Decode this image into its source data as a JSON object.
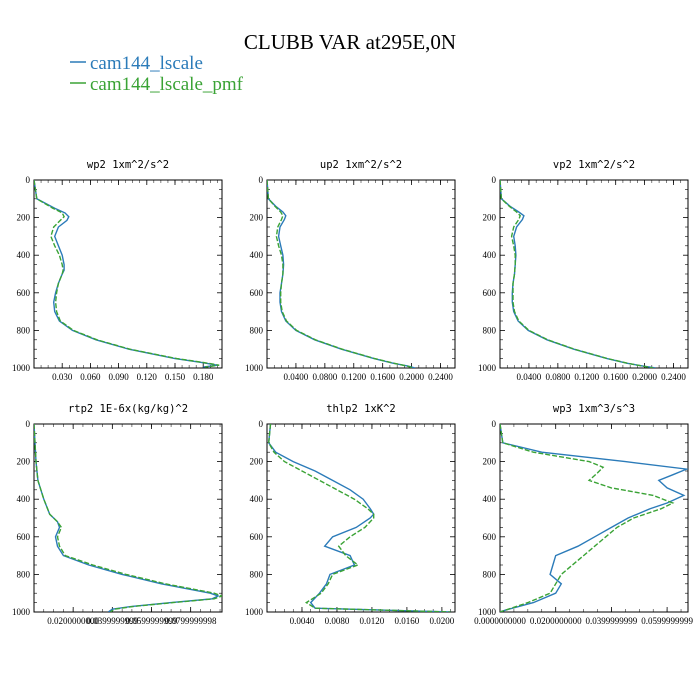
{
  "title": "CLUBB VAR at295E,0N",
  "legend": [
    {
      "label": "cam144_lscale",
      "color": "#2b7bb9",
      "dash": "solid"
    },
    {
      "label": "cam144_lscale_pmf",
      "color": "#3aa335",
      "dash": "dashed"
    }
  ],
  "chart_data": [
    {
      "type": "line",
      "title": "wp2  1xm^2/s^2",
      "xlim": [
        0.0,
        0.2
      ],
      "ylim": [
        1000,
        0
      ],
      "xticks": [
        "0.030",
        "0.060",
        "0.090",
        "0.120",
        "0.150",
        "0.180"
      ],
      "xtick_values": [
        0.03,
        0.06,
        0.09,
        0.12,
        0.15,
        0.18
      ],
      "yticks": [
        0,
        200,
        400,
        600,
        800,
        1000
      ],
      "series": [
        {
          "name": "cam144_lscale",
          "color": "#2b7bb9",
          "y": [
            0,
            100,
            150,
            175,
            195,
            215,
            250,
            300,
            350,
            400,
            450,
            480,
            500,
            550,
            600,
            650,
            700,
            750,
            800,
            850,
            900,
            950,
            970,
            985,
            995
          ],
          "x": [
            0.0,
            0.003,
            0.022,
            0.033,
            0.037,
            0.035,
            0.026,
            0.022,
            0.026,
            0.03,
            0.032,
            0.032,
            0.03,
            0.026,
            0.023,
            0.021,
            0.022,
            0.027,
            0.041,
            0.066,
            0.101,
            0.15,
            0.178,
            0.195,
            0.18
          ]
        },
        {
          "name": "cam144_lscale_pmf",
          "color": "#3aa335",
          "y": [
            0,
            100,
            150,
            175,
            195,
            215,
            250,
            300,
            350,
            400,
            450,
            480,
            500,
            550,
            600,
            650,
            700,
            750,
            800,
            850,
            900,
            950,
            970,
            985,
            995
          ],
          "x": [
            0.0,
            0.003,
            0.02,
            0.03,
            0.032,
            0.028,
            0.021,
            0.018,
            0.022,
            0.027,
            0.03,
            0.031,
            0.03,
            0.026,
            0.024,
            0.023,
            0.024,
            0.028,
            0.042,
            0.067,
            0.102,
            0.152,
            0.18,
            0.197,
            0.182
          ]
        }
      ]
    },
    {
      "type": "line",
      "title": "up2  1xm^2/s^2",
      "xlim": [
        0.0,
        0.26
      ],
      "ylim": [
        1000,
        0
      ],
      "xticks": [
        "0.0400",
        "0.0800",
        "0.1200",
        "0.1600",
        "0.2000",
        "0.2400"
      ],
      "xtick_values": [
        0.04,
        0.08,
        0.12,
        0.16,
        0.2,
        0.24
      ],
      "yticks": [
        0,
        200,
        400,
        600,
        800,
        1000
      ],
      "series": [
        {
          "name": "cam144_lscale",
          "color": "#2b7bb9",
          "y": [
            0,
            100,
            140,
            170,
            190,
            210,
            250,
            300,
            350,
            400,
            450,
            500,
            550,
            600,
            650,
            700,
            750,
            800,
            850,
            900,
            950,
            975,
            990,
            1000
          ],
          "x": [
            0.0,
            0.002,
            0.012,
            0.022,
            0.026,
            0.024,
            0.018,
            0.016,
            0.019,
            0.022,
            0.023,
            0.022,
            0.02,
            0.018,
            0.018,
            0.02,
            0.026,
            0.04,
            0.066,
            0.103,
            0.148,
            0.175,
            0.195,
            0.205
          ]
        },
        {
          "name": "cam144_lscale_pmf",
          "color": "#3aa335",
          "y": [
            0,
            100,
            140,
            170,
            190,
            210,
            250,
            300,
            350,
            400,
            450,
            500,
            550,
            600,
            650,
            700,
            750,
            800,
            850,
            900,
            950,
            975,
            990,
            1000
          ],
          "x": [
            0.0,
            0.002,
            0.011,
            0.019,
            0.022,
            0.02,
            0.015,
            0.013,
            0.016,
            0.02,
            0.022,
            0.022,
            0.02,
            0.019,
            0.019,
            0.021,
            0.027,
            0.041,
            0.067,
            0.104,
            0.149,
            0.176,
            0.194,
            0.202
          ]
        }
      ]
    },
    {
      "type": "line",
      "title": "vp2  1xm^2/s^2",
      "xlim": [
        0.0,
        0.26
      ],
      "ylim": [
        1000,
        0
      ],
      "xticks": [
        "0.0400",
        "0.0800",
        "0.1200",
        "0.1600",
        "0.2000",
        "0.2400"
      ],
      "xtick_values": [
        0.04,
        0.08,
        0.12,
        0.16,
        0.2,
        0.24
      ],
      "yticks": [
        0,
        200,
        400,
        600,
        800,
        1000
      ],
      "series": [
        {
          "name": "cam144_lscale",
          "color": "#2b7bb9",
          "y": [
            0,
            100,
            140,
            170,
            190,
            210,
            250,
            300,
            350,
            400,
            450,
            500,
            550,
            600,
            650,
            700,
            750,
            800,
            850,
            900,
            950,
            975,
            990,
            1000
          ],
          "x": [
            0.0,
            0.002,
            0.014,
            0.026,
            0.033,
            0.031,
            0.023,
            0.019,
            0.021,
            0.022,
            0.021,
            0.02,
            0.018,
            0.017,
            0.017,
            0.019,
            0.025,
            0.039,
            0.065,
            0.102,
            0.148,
            0.176,
            0.198,
            0.215
          ]
        },
        {
          "name": "cam144_lscale_pmf",
          "color": "#3aa335",
          "y": [
            0,
            100,
            140,
            170,
            190,
            210,
            250,
            300,
            350,
            400,
            450,
            500,
            550,
            600,
            650,
            700,
            750,
            800,
            850,
            900,
            950,
            975,
            990,
            1000
          ],
          "x": [
            0.0,
            0.002,
            0.013,
            0.023,
            0.028,
            0.026,
            0.019,
            0.016,
            0.019,
            0.021,
            0.021,
            0.02,
            0.018,
            0.018,
            0.018,
            0.02,
            0.026,
            0.04,
            0.066,
            0.103,
            0.149,
            0.177,
            0.197,
            0.212
          ]
        }
      ]
    },
    {
      "type": "line",
      "title": "rtp2  1E-6x(kg/kg)^2",
      "xlim": [
        0.0,
        0.096
      ],
      "ylim": [
        1000,
        0
      ],
      "xticks": [
        "0.0200000000",
        "0.0399999999",
        "0.0599999999",
        "0.0799999998"
      ],
      "xtick_values": [
        0.02,
        0.04,
        0.06,
        0.08
      ],
      "yticks": [
        0,
        200,
        400,
        600,
        800,
        1000
      ],
      "series": [
        {
          "name": "cam144_lscale",
          "color": "#2b7bb9",
          "y": [
            0,
            100,
            200,
            300,
            400,
            480,
            520,
            550,
            600,
            650,
            700,
            750,
            800,
            850,
            880,
            900,
            915,
            930,
            950,
            970,
            985,
            1000
          ],
          "x": [
            0.0,
            0.0005,
            0.001,
            0.002,
            0.005,
            0.008,
            0.012,
            0.013,
            0.011,
            0.012,
            0.015,
            0.028,
            0.045,
            0.065,
            0.08,
            0.09,
            0.094,
            0.091,
            0.07,
            0.05,
            0.04,
            0.038
          ]
        },
        {
          "name": "cam144_lscale_pmf",
          "color": "#3aa335",
          "y": [
            0,
            100,
            200,
            300,
            400,
            480,
            520,
            550,
            600,
            650,
            700,
            750,
            800,
            850,
            880,
            900,
            915,
            930,
            950,
            970,
            985,
            1000
          ],
          "x": [
            0.0,
            0.0005,
            0.001,
            0.002,
            0.005,
            0.008,
            0.012,
            0.014,
            0.012,
            0.013,
            0.016,
            0.03,
            0.047,
            0.067,
            0.082,
            0.092,
            0.096,
            0.092,
            0.071,
            0.051,
            0.041,
            0.039
          ]
        }
      ]
    },
    {
      "type": "line",
      "title": "thlp2  1xK^2",
      "xlim": [
        0.0,
        0.0215
      ],
      "ylim": [
        1000,
        0
      ],
      "xticks": [
        "0.0040",
        "0.0080",
        "0.0120",
        "0.0160",
        "0.0200"
      ],
      "xtick_values": [
        0.004,
        0.008,
        0.012,
        0.016,
        0.02
      ],
      "yticks": [
        0,
        200,
        400,
        600,
        800,
        1000
      ],
      "series": [
        {
          "name": "cam144_lscale",
          "color": "#2b7bb9",
          "y": [
            0,
            50,
            100,
            150,
            200,
            250,
            300,
            350,
            400,
            450,
            480,
            500,
            550,
            600,
            650,
            700,
            750,
            800,
            850,
            900,
            950,
            980,
            1000
          ],
          "x": [
            0.0004,
            0.0003,
            0.0002,
            0.001,
            0.003,
            0.0055,
            0.0075,
            0.0095,
            0.011,
            0.0118,
            0.0122,
            0.0118,
            0.0102,
            0.0075,
            0.0066,
            0.0095,
            0.01,
            0.0072,
            0.0068,
            0.006,
            0.005,
            0.0055,
            0.021
          ]
        },
        {
          "name": "cam144_lscale_pmf",
          "color": "#3aa335",
          "y": [
            0,
            50,
            100,
            150,
            200,
            250,
            300,
            350,
            400,
            450,
            480,
            500,
            550,
            600,
            650,
            700,
            750,
            800,
            850,
            900,
            950,
            980,
            1000
          ],
          "x": [
            0.0004,
            0.0003,
            0.0002,
            0.0008,
            0.002,
            0.004,
            0.006,
            0.008,
            0.01,
            0.0115,
            0.0122,
            0.0122,
            0.0112,
            0.0095,
            0.0082,
            0.009,
            0.0104,
            0.0075,
            0.007,
            0.0062,
            0.0045,
            0.0055,
            0.021
          ]
        }
      ]
    },
    {
      "type": "line",
      "title": "wp3  1xm^3/s^3",
      "xlim": [
        0.0,
        0.0675
      ],
      "ylim": [
        1000,
        0
      ],
      "xticks": [
        "0.0000000000",
        "0.0200000000",
        "0.0399999999",
        "0.0599999999"
      ],
      "xtick_values": [
        0.0,
        0.02,
        0.04,
        0.06
      ],
      "yticks": [
        0,
        200,
        400,
        600,
        800,
        1000
      ],
      "series": [
        {
          "name": "cam144_lscale",
          "color": "#2b7bb9",
          "y": [
            0,
            100,
            150,
            200,
            240,
            270,
            300,
            340,
            380,
            420,
            450,
            500,
            550,
            600,
            650,
            700,
            750,
            800,
            850,
            900,
            950,
            990,
            1000
          ],
          "x": [
            0.0,
            0.001,
            0.015,
            0.045,
            0.067,
            0.062,
            0.057,
            0.06,
            0.066,
            0.06,
            0.054,
            0.046,
            0.04,
            0.034,
            0.028,
            0.02,
            0.019,
            0.018,
            0.022,
            0.02,
            0.012,
            0.002,
            0.0
          ]
        },
        {
          "name": "cam144_lscale_pmf",
          "color": "#3aa335",
          "y": [
            0,
            100,
            150,
            200,
            230,
            260,
            300,
            340,
            380,
            420,
            450,
            500,
            550,
            600,
            650,
            700,
            750,
            800,
            850,
            900,
            950,
            990,
            1000
          ],
          "x": [
            0.0,
            0.001,
            0.012,
            0.032,
            0.037,
            0.035,
            0.032,
            0.04,
            0.055,
            0.062,
            0.058,
            0.048,
            0.042,
            0.038,
            0.034,
            0.03,
            0.026,
            0.022,
            0.02,
            0.018,
            0.01,
            0.002,
            0.0
          ]
        }
      ]
    }
  ]
}
